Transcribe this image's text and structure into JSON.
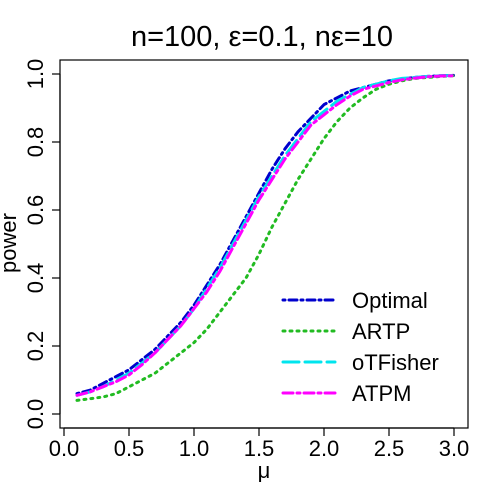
{
  "chart_data": {
    "type": "line",
    "title": "n=100, ε=0.1, nε=10",
    "xlabel": "μ",
    "ylabel": "power",
    "xlim": [
      0.0,
      3.0
    ],
    "ylim": [
      0.0,
      1.0
    ],
    "x_ticks": [
      "0.0",
      "0.5",
      "1.0",
      "1.5",
      "2.0",
      "2.5",
      "3.0"
    ],
    "y_ticks": [
      "0.0",
      "0.2",
      "0.4",
      "0.6",
      "0.8",
      "1.0"
    ],
    "grid": false,
    "legend_position": "bottom-right",
    "x": [
      0.1,
      0.2,
      0.3,
      0.4,
      0.5,
      0.6,
      0.7,
      0.8,
      0.9,
      1.0,
      1.1,
      1.2,
      1.3,
      1.4,
      1.5,
      1.6,
      1.7,
      1.8,
      1.9,
      2.0,
      2.1,
      2.2,
      2.3,
      2.4,
      2.5,
      2.6,
      2.7,
      2.8,
      2.9,
      3.0
    ],
    "series": [
      {
        "name": "Optimal",
        "color": "#0000cd",
        "dash": "dotdash",
        "values": [
          0.06,
          0.07,
          0.09,
          0.11,
          0.13,
          0.16,
          0.19,
          0.23,
          0.27,
          0.32,
          0.38,
          0.44,
          0.51,
          0.58,
          0.65,
          0.72,
          0.78,
          0.83,
          0.87,
          0.91,
          0.93,
          0.95,
          0.96,
          0.97,
          0.98,
          0.985,
          0.99,
          0.993,
          0.995,
          0.996
        ]
      },
      {
        "name": "ARTP",
        "color": "#22bb22",
        "dash": "dotted",
        "values": [
          0.04,
          0.045,
          0.05,
          0.06,
          0.08,
          0.1,
          0.12,
          0.15,
          0.18,
          0.21,
          0.25,
          0.3,
          0.35,
          0.4,
          0.47,
          0.55,
          0.62,
          0.69,
          0.75,
          0.81,
          0.86,
          0.9,
          0.93,
          0.955,
          0.97,
          0.98,
          0.987,
          0.99,
          0.993,
          0.995
        ]
      },
      {
        "name": "oTFisher",
        "color": "#00e5ee",
        "dash": "longdash",
        "values": [
          0.055,
          0.065,
          0.08,
          0.1,
          0.12,
          0.15,
          0.18,
          0.22,
          0.26,
          0.31,
          0.37,
          0.43,
          0.5,
          0.57,
          0.64,
          0.7,
          0.76,
          0.81,
          0.86,
          0.89,
          0.92,
          0.94,
          0.96,
          0.97,
          0.98,
          0.987,
          0.99,
          0.993,
          0.995,
          0.996
        ]
      },
      {
        "name": "ATPM",
        "color": "#ff00ff",
        "dash": "dashdot",
        "values": [
          0.055,
          0.065,
          0.08,
          0.095,
          0.115,
          0.145,
          0.18,
          0.22,
          0.26,
          0.31,
          0.36,
          0.42,
          0.49,
          0.56,
          0.63,
          0.69,
          0.75,
          0.8,
          0.85,
          0.88,
          0.91,
          0.935,
          0.955,
          0.965,
          0.975,
          0.983,
          0.988,
          0.992,
          0.994,
          0.995
        ]
      }
    ]
  }
}
